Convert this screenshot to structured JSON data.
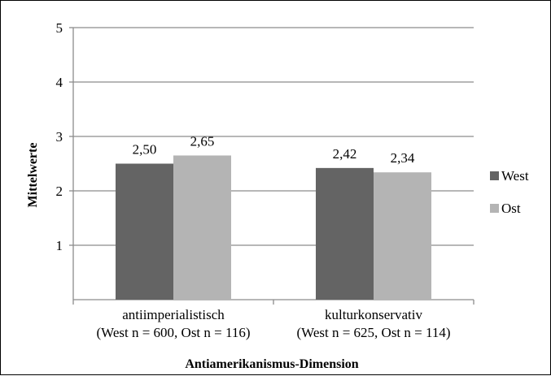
{
  "chart_data": {
    "type": "bar",
    "title": "",
    "xlabel": "Antiamerikanismus-Dimension",
    "ylabel": "Mittelwerte",
    "ylim": [
      0,
      5
    ],
    "yticks": [
      "1",
      "2",
      "3",
      "4",
      "5"
    ],
    "categories": [
      [
        "antiimperialistisch",
        "(West n = 600, Ost n = 116)"
      ],
      [
        "kulturkonservativ",
        "(West n = 625, Ost n = 114)"
      ]
    ],
    "series": [
      {
        "name": "West",
        "values": [
          2.5,
          2.42
        ],
        "labels": [
          "2,50",
          "2,42"
        ],
        "color": "#646464"
      },
      {
        "name": "Ost",
        "values": [
          2.65,
          2.34
        ],
        "labels": [
          "2,65",
          "2,34"
        ],
        "color": "#b4b4b4"
      }
    ],
    "grid": true,
    "legend_position": "right"
  }
}
